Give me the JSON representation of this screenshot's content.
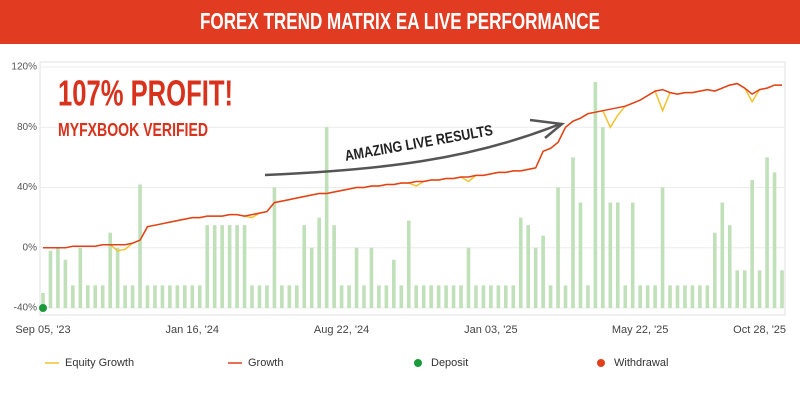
{
  "chart_data": {
    "type": "line",
    "title": "FOREX TREND MATRIX EA LIVE PERFORMANCE",
    "annotations": [
      "107% PROFIT!",
      "MYFXBOOK VERIFIED",
      "AMAZING LIVE RESULTS"
    ],
    "categories": [
      "Sep 05, '23",
      null,
      null,
      null,
      null,
      null,
      null,
      null,
      null,
      null,
      null,
      null,
      null,
      null,
      null,
      null,
      null,
      null,
      null,
      null,
      "Jan 16, '24",
      null,
      null,
      null,
      null,
      null,
      null,
      null,
      null,
      null,
      null,
      null,
      null,
      null,
      null,
      null,
      null,
      null,
      null,
      null,
      "Aug 22, '24",
      null,
      null,
      null,
      null,
      null,
      null,
      null,
      null,
      null,
      null,
      null,
      null,
      null,
      null,
      null,
      null,
      null,
      null,
      null,
      "Jan 03, '25",
      null,
      null,
      null,
      null,
      null,
      null,
      null,
      null,
      null,
      null,
      null,
      null,
      null,
      null,
      null,
      null,
      null,
      null,
      null,
      "May 22, '25",
      null,
      null,
      null,
      null,
      null,
      null,
      null,
      null,
      null,
      null,
      null,
      null,
      null,
      null,
      null,
      "Oct 28, '25",
      null,
      null,
      null
    ],
    "ylim": [
      -40,
      120
    ],
    "yticks": [
      {
        "value": -40,
        "label": "-40%"
      },
      {
        "value": 0,
        "label": "0%"
      },
      {
        "value": 40,
        "label": "40%"
      },
      {
        "value": 80,
        "label": "80%"
      },
      {
        "value": 120,
        "label": "120%"
      }
    ],
    "grid": true,
    "series": [
      {
        "type": "bar",
        "color": "#bfe0b8",
        "values": [
          -30,
          -2,
          0,
          -8,
          -25,
          0,
          -25,
          -25,
          -25,
          10,
          0,
          -25,
          -25,
          42,
          -25,
          -25,
          -25,
          -25,
          -25,
          -25,
          -25,
          -25,
          15,
          15,
          15,
          15,
          15,
          15,
          -25,
          -25,
          -25,
          40,
          -25,
          -25,
          -25,
          15,
          0,
          20,
          80,
          15,
          -25,
          -25,
          0,
          -25,
          0,
          -25,
          -25,
          -8,
          -25,
          18,
          -25,
          -25,
          -25,
          -25,
          -25,
          -25,
          -25,
          0,
          -25,
          -25,
          -25,
          -25,
          -25,
          -25,
          20,
          15,
          0,
          8,
          -25,
          40,
          -25,
          60,
          30,
          -25,
          110,
          80,
          30,
          30,
          -25,
          30,
          -25,
          -25,
          -25,
          40,
          -25,
          -25,
          -25,
          -25,
          -25,
          -25,
          10,
          30,
          15,
          -15,
          -15,
          45,
          -15,
          60,
          50,
          -15
        ]
      },
      {
        "name": "Equity Growth",
        "type": "line",
        "color": "#f2c230",
        "values": [
          0,
          0,
          0,
          0,
          1,
          1,
          1,
          1,
          2,
          2,
          -2,
          -1,
          3,
          5,
          14,
          15,
          16,
          17,
          18,
          19,
          20,
          20,
          21,
          21,
          21,
          22,
          22,
          21,
          20,
          23,
          24,
          30,
          31,
          32,
          33,
          34,
          35,
          36,
          36,
          37,
          38,
          39,
          40,
          40,
          41,
          41,
          42,
          42,
          43,
          43,
          41,
          44,
          45,
          45,
          46,
          46,
          47,
          44,
          48,
          48,
          49,
          50,
          50,
          51,
          51,
          52,
          53,
          64,
          66,
          70,
          80,
          84,
          86,
          89,
          90,
          91,
          80,
          88,
          94,
          96,
          98,
          101,
          104,
          91,
          103,
          102,
          103,
          103,
          104,
          105,
          104,
          106,
          108,
          109,
          106,
          97,
          105,
          106,
          108,
          108
        ]
      },
      {
        "name": "Growth",
        "type": "line",
        "color": "#e2401c",
        "values": [
          0,
          0,
          0,
          0,
          1,
          1,
          1,
          1,
          2,
          2,
          2,
          2,
          3,
          5,
          14,
          15,
          16,
          17,
          18,
          19,
          20,
          20,
          21,
          21,
          21,
          22,
          22,
          21,
          22,
          23,
          24,
          30,
          31,
          32,
          33,
          34,
          35,
          36,
          36,
          37,
          38,
          39,
          40,
          40,
          41,
          41,
          42,
          42,
          43,
          43,
          44,
          44,
          45,
          45,
          46,
          46,
          47,
          47,
          48,
          48,
          49,
          50,
          50,
          51,
          51,
          52,
          53,
          64,
          66,
          70,
          80,
          84,
          86,
          89,
          90,
          91,
          92,
          93,
          94,
          96,
          98,
          101,
          104,
          105,
          103,
          102,
          103,
          103,
          104,
          105,
          104,
          106,
          108,
          109,
          106,
          102,
          105,
          106,
          108,
          108
        ]
      },
      {
        "name": "Deposit",
        "type": "scatter",
        "color": "#1a9a3a",
        "x": [
          0
        ],
        "values": [
          -40
        ]
      },
      {
        "name": "Withdrawal",
        "type": "scatter",
        "color": "#e2401c",
        "x": [],
        "values": []
      }
    ]
  }
}
